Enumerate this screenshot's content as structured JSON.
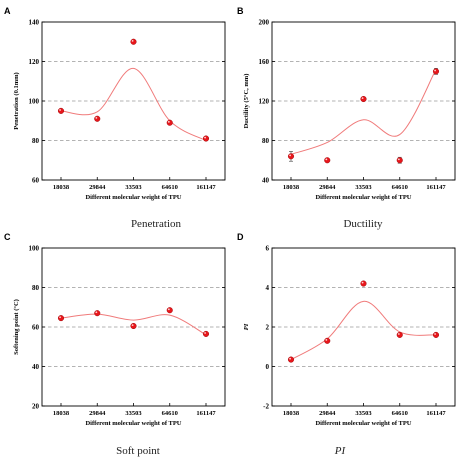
{
  "figure": {
    "captions": [
      "Penetration",
      "Ductility",
      "Soft point",
      "PI"
    ]
  },
  "chart_data": [
    {
      "type": "scatter",
      "panel": "A",
      "caption": "Penetration",
      "categories": [
        "18038",
        "29844",
        "33503",
        "64610",
        "161147"
      ],
      "values": [
        95,
        91,
        130,
        89,
        81
      ],
      "xlabel": "Different molecular weight of TPU",
      "ylabel": "Penetration (0.1mm)",
      "ylim": [
        60,
        140
      ],
      "yticks": [
        60,
        80,
        100,
        120,
        140
      ],
      "grid": "dashed horizontal",
      "fit_curve": true,
      "fit_values": [
        95,
        94.5,
        116.5,
        90,
        80
      ],
      "marker_color": "#e8161b",
      "curve_color": "#f07b7b",
      "italic_caption": false
    },
    {
      "type": "scatter",
      "panel": "B",
      "caption": "Ductility",
      "categories": [
        "18038",
        "29844",
        "33503",
        "64610",
        "161147"
      ],
      "values": [
        64,
        60,
        122,
        60,
        150
      ],
      "error": [
        5,
        0,
        0,
        3,
        3
      ],
      "xlabel": "Different molecular weight of TPU",
      "ylabel": "Ductility (5°C, mm)",
      "ylim": [
        40,
        200
      ],
      "yticks": [
        40,
        80,
        120,
        160,
        200
      ],
      "grid": "dashed horizontal",
      "fit_curve": true,
      "fit_values": [
        66,
        78,
        101,
        86,
        152
      ],
      "marker_color": "#e8161b",
      "curve_color": "#f07b7b",
      "italic_caption": false
    },
    {
      "type": "scatter",
      "panel": "C",
      "caption": "Soft point",
      "categories": [
        "18038",
        "29844",
        "33503",
        "64610",
        "161147"
      ],
      "values": [
        64.5,
        67,
        60.5,
        68.5,
        56.5
      ],
      "xlabel": "Different molecular weight of TPU",
      "ylabel": "Softening point (°C)",
      "ylim": [
        20,
        100
      ],
      "yticks": [
        20,
        40,
        60,
        80,
        100
      ],
      "grid": "dashed horizontal",
      "fit_curve": true,
      "fit_values": [
        64.5,
        66.5,
        63.5,
        66,
        56
      ],
      "marker_color": "#e8161b",
      "curve_color": "#f07b7b",
      "italic_caption": false
    },
    {
      "type": "scatter",
      "panel": "D",
      "caption": "PI",
      "categories": [
        "18038",
        "29844",
        "33503",
        "64610",
        "161147"
      ],
      "values": [
        0.35,
        1.3,
        4.2,
        1.6,
        1.6
      ],
      "xlabel": "Different molecular weight of TPU",
      "ylabel": "PI",
      "ylim": [
        -2,
        6
      ],
      "yticks": [
        -2,
        0,
        2,
        4,
        6
      ],
      "grid": "dashed horizontal",
      "fit_curve": true,
      "fit_values": [
        0.35,
        1.4,
        3.3,
        1.75,
        1.6
      ],
      "marker_color": "#e8161b",
      "curve_color": "#f07b7b",
      "italic_caption": true
    }
  ]
}
